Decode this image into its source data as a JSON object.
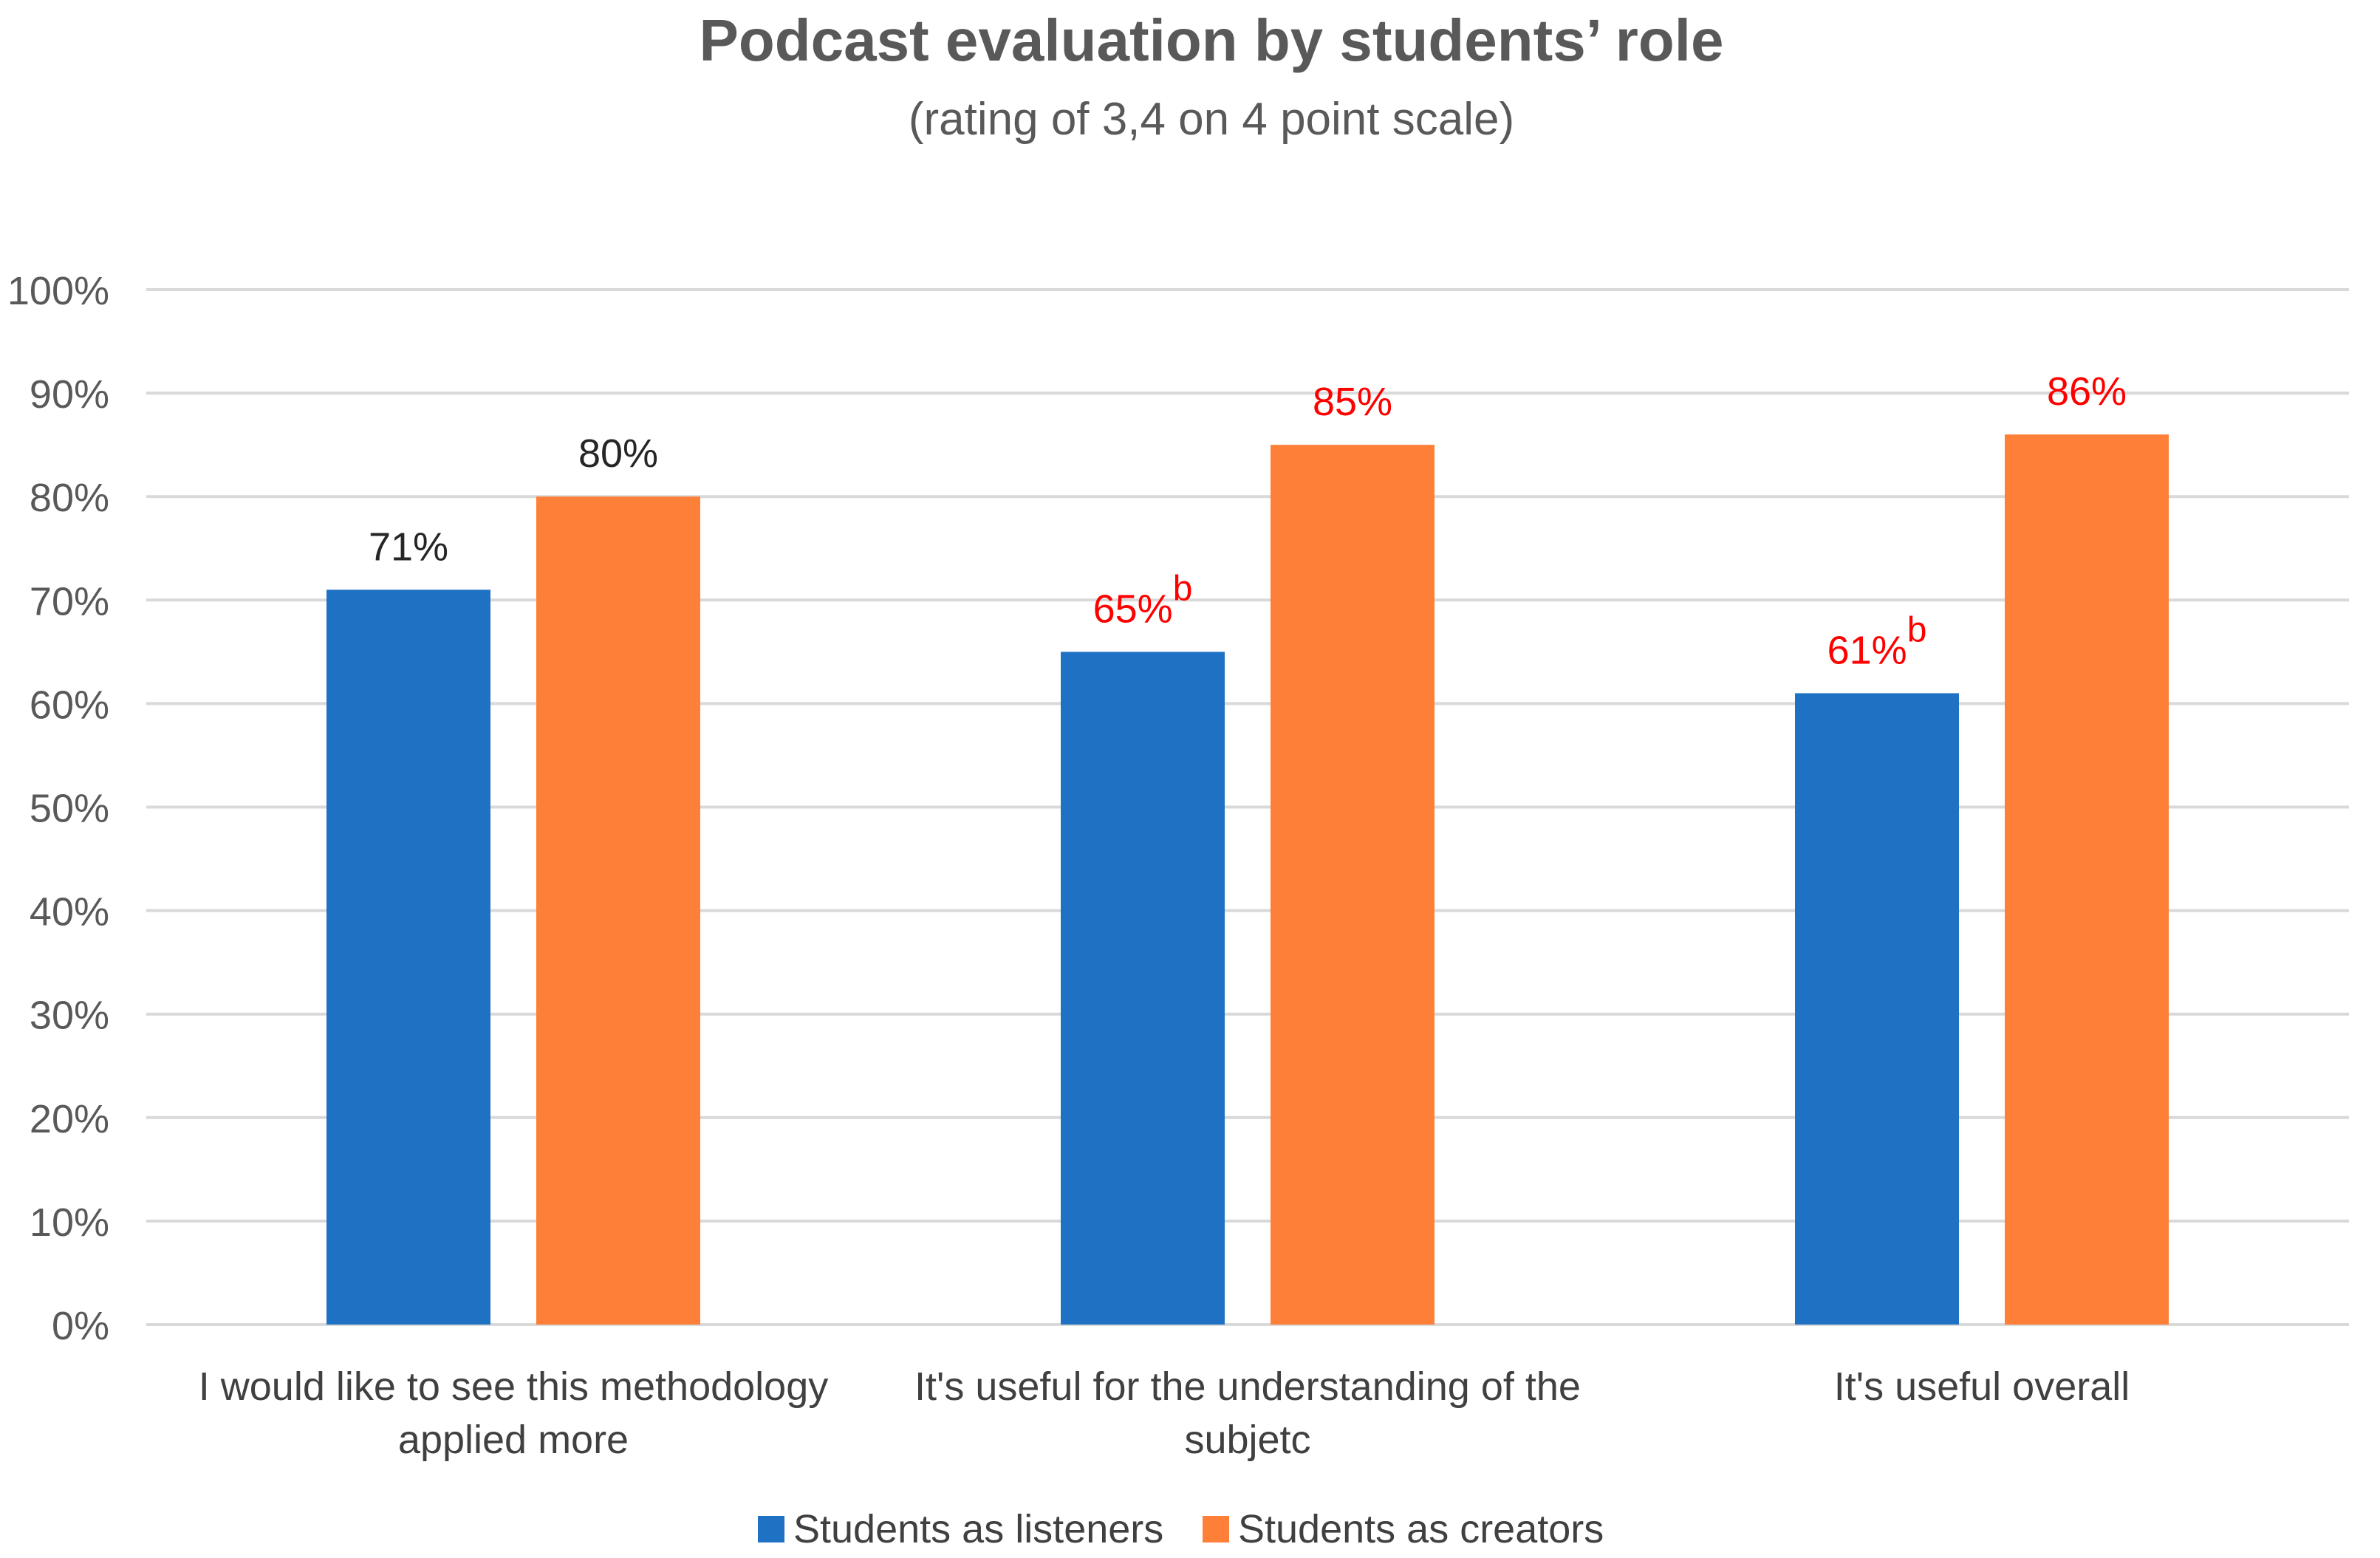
{
  "chart_data": {
    "type": "bar",
    "title": "Podcast evaluation by students’ role",
    "subtitle": "(rating of 3,4 on 4 point scale)",
    "xlabel": "",
    "ylabel": "",
    "ylim": [
      0,
      100
    ],
    "y_ticks": [
      0,
      10,
      20,
      30,
      40,
      50,
      60,
      70,
      80,
      90,
      100
    ],
    "y_tick_format": "%",
    "grid": true,
    "legend_position": "bottom",
    "categories": [
      [
        "I would like to see this methodology",
        "applied more"
      ],
      [
        "It's useful for the understanding of the",
        "subjetc"
      ],
      [
        "It's useful overall"
      ]
    ],
    "series": [
      {
        "name": "Students as listeners",
        "color": "#1F72C3",
        "values": [
          71,
          65,
          61
        ],
        "labels": [
          "71%",
          "65%",
          "61%"
        ],
        "label_colors": [
          "#262626",
          "#FF0000",
          "#FF0000"
        ],
        "label_superscripts": [
          "",
          "b",
          "b"
        ]
      },
      {
        "name": "Students as creators",
        "color": "#FE7F37",
        "values": [
          80,
          85,
          86
        ],
        "labels": [
          "80%",
          "85%",
          "86%"
        ],
        "label_colors": [
          "#262626",
          "#FF0000",
          "#FF0000"
        ],
        "label_superscripts": [
          "",
          "",
          ""
        ]
      }
    ],
    "gridline_color": "#D9D9D9"
  }
}
